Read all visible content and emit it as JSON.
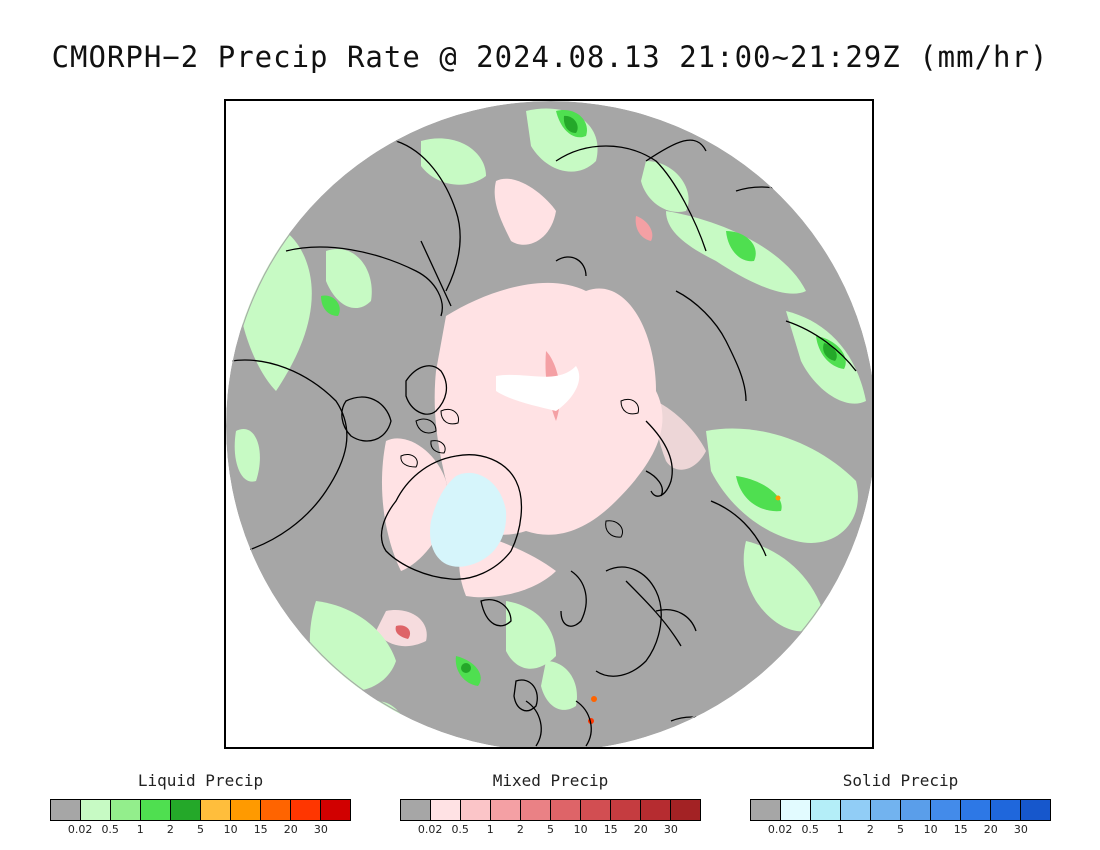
{
  "title": "CMORPH−2 Precip Rate @ 2024.08.13 21:00~21:29Z (mm/hr)",
  "legends": [
    {
      "key": "liquid",
      "title": "Liquid Precip",
      "colors": [
        "#a6a6a6",
        "#c7fac4",
        "#93ee8c",
        "#4fdf50",
        "#24a829",
        "#ffbe3c",
        "#ff9a00",
        "#ff6400",
        "#ff3600",
        "#d10000"
      ],
      "ticks": [
        "0.02",
        "0.5",
        "1",
        "2",
        "5",
        "10",
        "15",
        "20",
        "30"
      ]
    },
    {
      "key": "mixed",
      "title": "Mixed Precip",
      "colors": [
        "#a6a6a6",
        "#ffe2e4",
        "#fbc5c8",
        "#f4a0a4",
        "#ea8185",
        "#de6468",
        "#d24e52",
        "#c53c40",
        "#b62c30",
        "#a32224"
      ],
      "ticks": [
        "0.02",
        "0.5",
        "1",
        "2",
        "5",
        "10",
        "15",
        "20",
        "30"
      ]
    },
    {
      "key": "solid",
      "title": "Solid Precip",
      "colors": [
        "#a6a6a6",
        "#e2fbff",
        "#b4eef8",
        "#91cdf6",
        "#72b3ef",
        "#5a9eea",
        "#438bea",
        "#2d78e6",
        "#1f67dc",
        "#1657cc"
      ],
      "ticks": [
        "0.02",
        "0.5",
        "1",
        "2",
        "5",
        "10",
        "15",
        "20",
        "30"
      ]
    }
  ],
  "map": {
    "background_color": "#a6a6a6",
    "ocean_fill": "#a6a6a6"
  }
}
